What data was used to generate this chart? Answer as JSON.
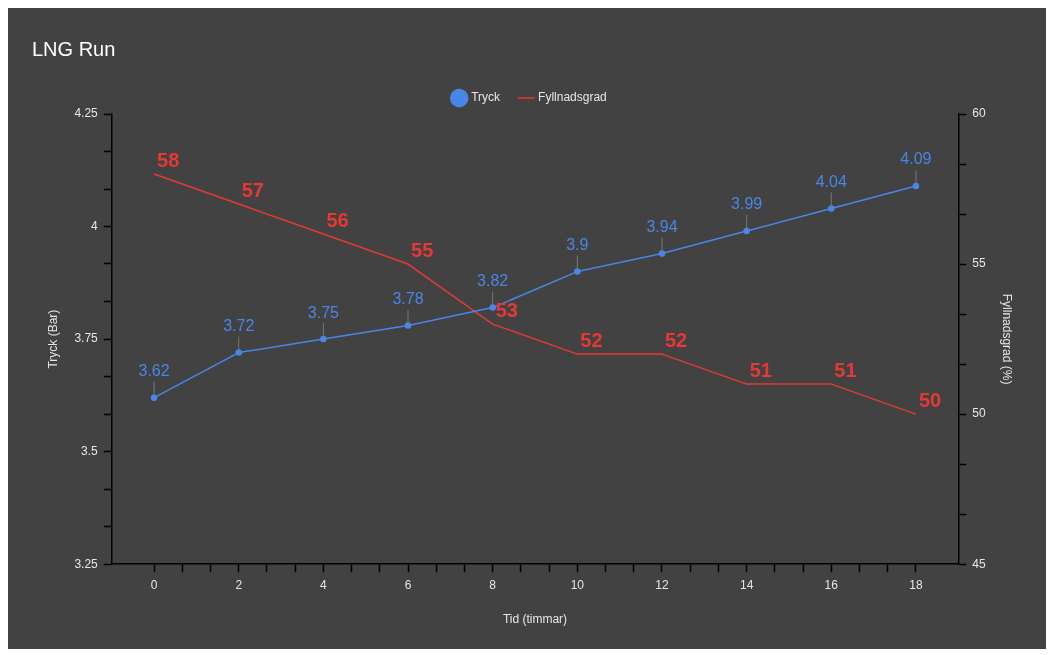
{
  "chart_data": {
    "type": "line",
    "title": "LNG Run",
    "xlabel": "Tid (timmar)",
    "ylabel": "Tryck (Bar)",
    "y2label": "Fyllnadsgrad (%)",
    "x": [
      0,
      2,
      4,
      6,
      8,
      10,
      12,
      14,
      16,
      18
    ],
    "series": [
      {
        "name": "Tryck",
        "color": "#4a86e8",
        "marker": "circle",
        "values": [
          3.62,
          3.72,
          3.75,
          3.78,
          3.82,
          3.9,
          3.94,
          3.99,
          4.04,
          4.09
        ]
      },
      {
        "name": "Fyllnadsgrad",
        "color": "#e53935",
        "axis": "y2",
        "marker": "none",
        "values": [
          58,
          57,
          56,
          55,
          53,
          52,
          52,
          51,
          51,
          50
        ]
      }
    ],
    "xlim": [
      -1,
      19
    ],
    "xticks": [
      0,
      {
        "value": 0.667,
        "label": null
      },
      {
        "value": 1.333,
        "label": null
      },
      2,
      {
        "value": 2.667,
        "label": null
      },
      {
        "value": 3.333,
        "label": null
      },
      4,
      {
        "value": 4.667,
        "label": null
      },
      {
        "value": 5.333,
        "label": null
      },
      6,
      {
        "value": 6.667,
        "label": null
      },
      {
        "value": 7.333,
        "label": null
      },
      8,
      {
        "value": 8.667,
        "label": null
      },
      {
        "value": 9.333,
        "label": null
      },
      10,
      {
        "value": 10.667,
        "label": null
      },
      {
        "value": 11.333,
        "label": null
      },
      12,
      {
        "value": 12.667,
        "label": null
      },
      {
        "value": 13.333,
        "label": null
      },
      14,
      {
        "value": 14.667,
        "label": null
      },
      {
        "value": 15.333,
        "label": null
      },
      16,
      {
        "value": 16.667,
        "label": null
      },
      {
        "value": 17.333,
        "label": null
      },
      18
    ],
    "ylim": [
      3.25,
      4.25
    ],
    "yticks": [
      3.25,
      {
        "value": 3.333,
        "label": null
      },
      {
        "value": 3.417,
        "label": null
      },
      3.5,
      {
        "value": 3.583,
        "label": null
      },
      {
        "value": 3.667,
        "label": null
      },
      3.75,
      {
        "value": 3.833,
        "label": null
      },
      {
        "value": 3.917,
        "label": null
      },
      4,
      {
        "value": 4.083,
        "label": null
      },
      {
        "value": 4.167,
        "label": null
      },
      4.25
    ],
    "y2lim": [
      45,
      60
    ],
    "y2ticks": [
      45,
      {
        "value": 46.667,
        "label": null
      },
      {
        "value": 48.333,
        "label": null
      },
      50,
      {
        "value": 51.667,
        "label": null
      },
      {
        "value": 53.333,
        "label": null
      },
      55,
      {
        "value": 56.667,
        "label": null
      },
      {
        "value": 58.333,
        "label": null
      },
      60
    ],
    "grid": false,
    "legend": "top",
    "data_labels": true
  }
}
